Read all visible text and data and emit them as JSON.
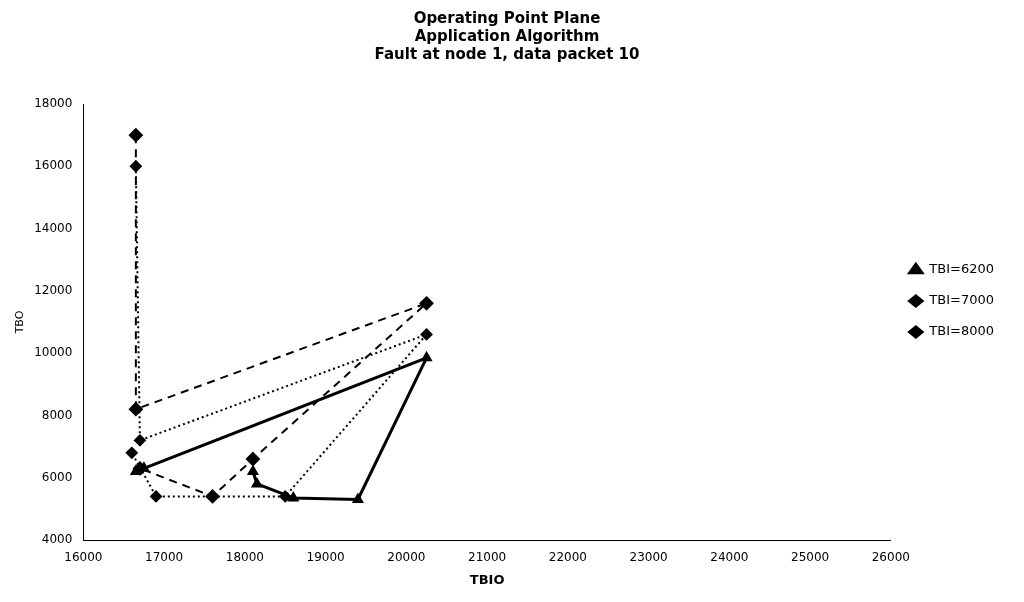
{
  "chart_data": {
    "type": "line",
    "title": "Operating Point Plane\nApplication Algorithm\nFault at node 1, data packet 10",
    "xlabel": "TBIO",
    "ylabel": "TBO",
    "xlim": [
      16000,
      26000
    ],
    "xticks": [
      16000,
      17000,
      18000,
      19000,
      20000,
      21000,
      22000,
      23000,
      24000,
      25000,
      26000
    ],
    "ylim": [
      4000,
      18000
    ],
    "yticks": [
      4000,
      6000,
      8000,
      10000,
      12000,
      14000,
      16000,
      18000
    ],
    "grid": false,
    "legend": "right",
    "series": [
      {
        "name": "TBI=6200",
        "color": "#000000",
        "marker": "triangle",
        "line_style": "solid",
        "x": [
          16650,
          16750,
          20250,
          19400,
          18600,
          18150,
          18100
        ],
        "values": [
          6200,
          6300,
          9850,
          5300,
          5350,
          5800,
          6200
        ]
      },
      {
        "name": "TBI=7000",
        "color": "#000000",
        "marker": "diamond",
        "line_style": "dotted",
        "x": [
          16650,
          16700,
          20250,
          18500,
          16900,
          16600
        ],
        "values": [
          16000,
          7200,
          10600,
          5400,
          5400,
          6800
        ]
      },
      {
        "name": "TBI=8000",
        "color": "#000000",
        "marker": "diamond",
        "line_style": "dashed",
        "x": [
          16650,
          16650,
          20250,
          18100,
          17600,
          16700
        ],
        "values": [
          17000,
          8200,
          11600,
          6600,
          5400,
          6300
        ]
      }
    ]
  }
}
